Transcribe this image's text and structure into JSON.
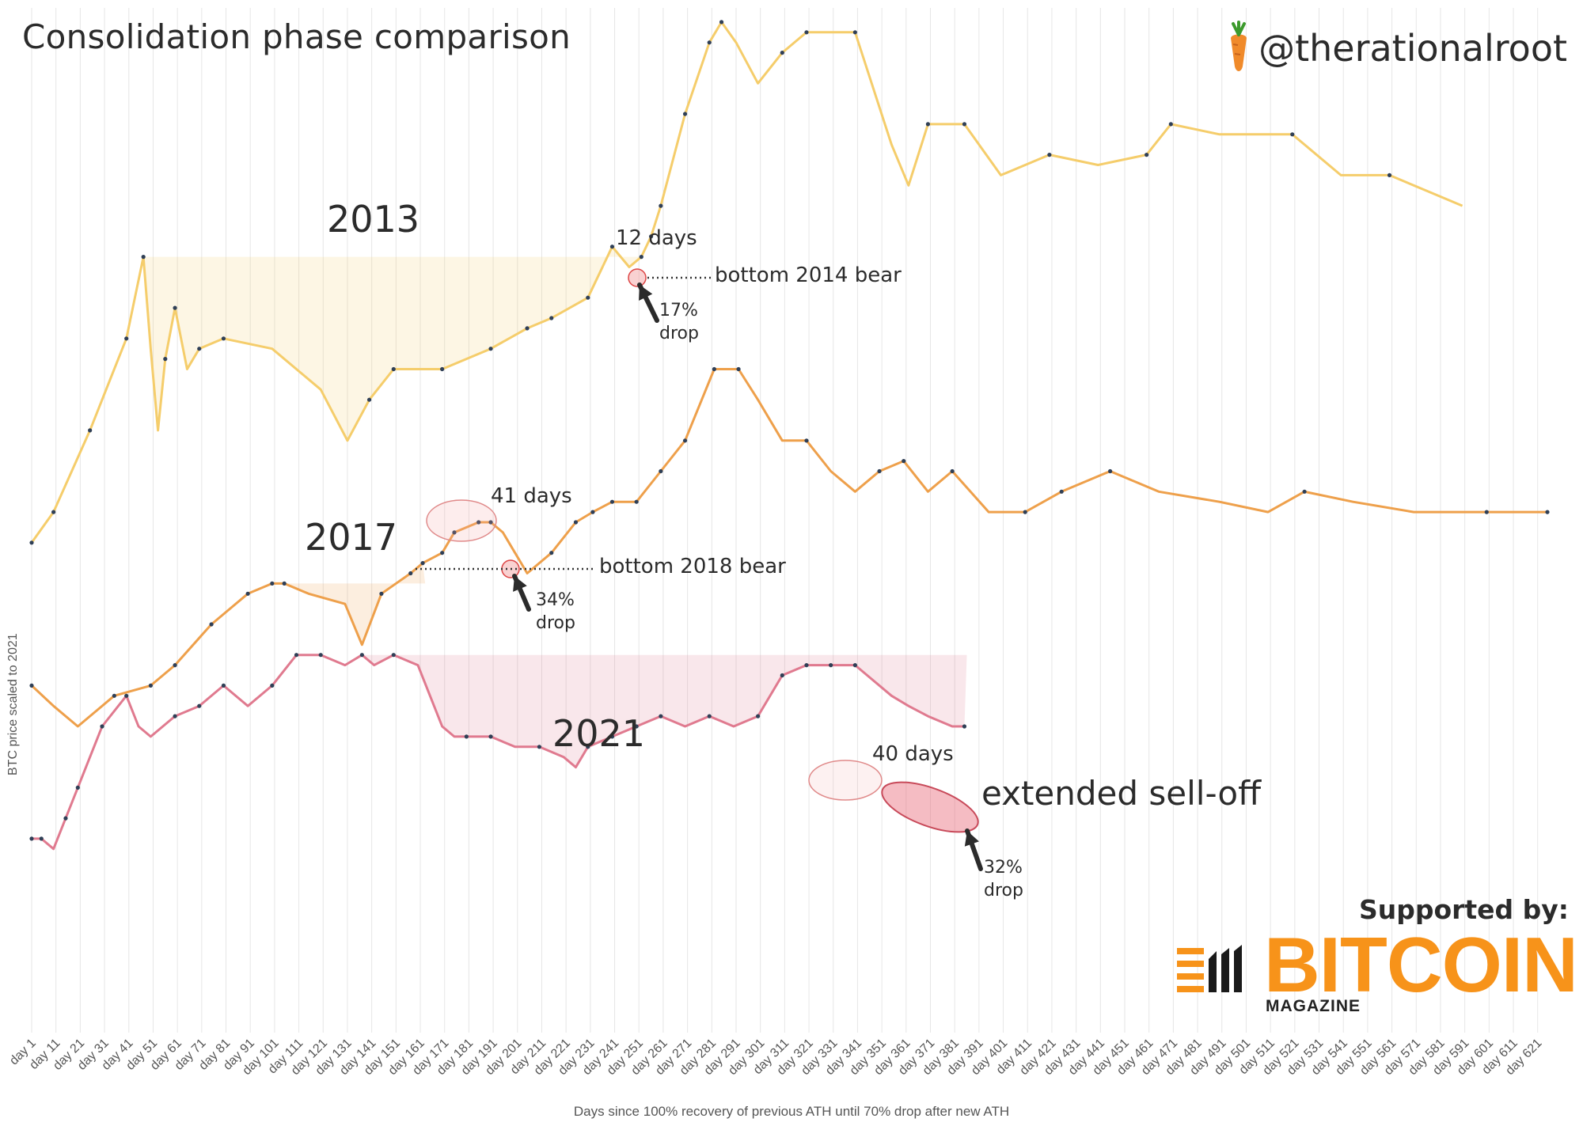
{
  "header": {
    "title": "Consolidation phase comparison",
    "handle": "@therationalroot"
  },
  "sponsor": {
    "supported_by": "Supported by:",
    "brand": "BITCOIN",
    "brand_sub": "MAGAZINE"
  },
  "axes": {
    "ylabel": "BTC price scaled to 2021",
    "xlabel": "Days since 100% recovery of previous ATH until 70% drop after new ATH"
  },
  "annotations": {
    "y2013": "2013",
    "y2017": "2017",
    "y2021": "2021",
    "days_2013": "12 days",
    "days_2017": "41 days",
    "days_2021": "40 days",
    "bottom_2014": "bottom 2014 bear",
    "bottom_2018": "bottom 2018 bear",
    "drop_2013_pct": "17%",
    "drop_2017_pct": "34%",
    "drop_2021_pct": "32%",
    "drop_word": "drop",
    "extended": "extended sell-off"
  },
  "colors": {
    "y2013": "#f5cd6b",
    "y2017": "#eea04b",
    "y2021": "#e07a8f",
    "marker": "#2f3f56",
    "grid": "#e6e6e6"
  },
  "chart_data": {
    "type": "line",
    "x_ticks": [
      "day 1",
      "day 11",
      "day 21",
      "day 31",
      "day 41",
      "day 51",
      "day 61",
      "day 71",
      "day 81",
      "day 91",
      "day 101",
      "day 111",
      "day 121",
      "day 131",
      "day 141",
      "day 151",
      "day 161",
      "day 171",
      "day 181",
      "day 191",
      "day 201",
      "day 211",
      "day 221",
      "day 231",
      "day 241",
      "day 251",
      "day 261",
      "day 271",
      "day 281",
      "day 291",
      "day 301",
      "day 311",
      "day 321",
      "day 331",
      "day 341",
      "day 351",
      "day 361",
      "day 371",
      "day 381",
      "day 391",
      "day 401",
      "day 411",
      "day 421",
      "day 431",
      "day 441",
      "day 451",
      "day 461",
      "day 471",
      "day 481",
      "day 491",
      "day 501",
      "day 511",
      "day 521",
      "day 531",
      "day 541",
      "day 551",
      "day 561",
      "day 571",
      "day 581",
      "day 591",
      "day 601",
      "day 611",
      "day 621"
    ],
    "xlim": [
      1,
      625
    ],
    "ylim": [
      0,
      100
    ],
    "series": [
      {
        "name": "2013",
        "x": [
          1,
          10,
          25,
          40,
          47,
          50,
          53,
          56,
          60,
          65,
          70,
          80,
          100,
          120,
          131,
          140,
          150,
          170,
          190,
          205,
          215,
          230,
          240,
          247,
          252,
          256,
          260,
          270,
          280,
          285,
          291,
          300,
          310,
          320,
          340,
          355,
          362,
          370,
          385,
          400,
          420,
          440,
          460,
          470,
          490,
          520,
          540,
          560,
          590
        ],
        "y": [
          48,
          51,
          59,
          68,
          76,
          67,
          59,
          66,
          71,
          65,
          67,
          68,
          67,
          63,
          58,
          62,
          65,
          65,
          67,
          69,
          70,
          72,
          77,
          75,
          76,
          78,
          81,
          90,
          97,
          99,
          97,
          93,
          96,
          98,
          98,
          87,
          83,
          89,
          89,
          84,
          86,
          85,
          86,
          89,
          88,
          88,
          84,
          84,
          81
        ]
      },
      {
        "name": "2017",
        "x": [
          1,
          10,
          20,
          35,
          50,
          60,
          75,
          90,
          100,
          105,
          115,
          130,
          137,
          145,
          157,
          162,
          170,
          175,
          185,
          190,
          195,
          200,
          205,
          215,
          225,
          232,
          240,
          250,
          260,
          270,
          282,
          292,
          300,
          310,
          320,
          330,
          340,
          350,
          360,
          370,
          380,
          395,
          410,
          425,
          445,
          465,
          490,
          510,
          525,
          545,
          570,
          600,
          625
        ],
        "y": [
          34,
          32,
          30,
          33,
          34,
          36,
          40,
          43,
          44,
          44,
          43,
          42,
          38,
          43,
          45,
          46,
          47,
          49,
          50,
          50,
          49,
          47,
          45,
          47,
          50,
          51,
          52,
          52,
          55,
          58,
          65,
          65,
          62,
          58,
          58,
          55,
          53,
          55,
          56,
          53,
          55,
          51,
          51,
          53,
          55,
          53,
          52,
          51,
          53,
          52,
          51,
          51,
          51
        ]
      },
      {
        "name": "2021",
        "x": [
          1,
          5,
          10,
          15,
          20,
          30,
          40,
          45,
          50,
          60,
          70,
          80,
          90,
          100,
          110,
          120,
          130,
          137,
          142,
          150,
          160,
          170,
          175,
          180,
          190,
          200,
          210,
          220,
          225,
          230,
          240,
          250,
          260,
          270,
          280,
          290,
          300,
          310,
          320,
          330,
          340,
          345,
          355,
          362,
          370,
          380,
          385
        ],
        "y": [
          19,
          19,
          18,
          21,
          24,
          30,
          33,
          30,
          29,
          31,
          32,
          34,
          32,
          34,
          37,
          37,
          36,
          37,
          36,
          37,
          36,
          30,
          29,
          29,
          29,
          28,
          28,
          27,
          26,
          28,
          29,
          30,
          31,
          30,
          31,
          30,
          31,
          35,
          36,
          36,
          36,
          35,
          33,
          32,
          31,
          30,
          30
        ]
      }
    ],
    "bands": [
      {
        "name": "2013",
        "from": 47,
        "to": 254,
        "level": 76
      },
      {
        "name": "2017",
        "from": 103,
        "to": 163,
        "level": 44
      },
      {
        "name": "2021",
        "from": 137,
        "to": 386,
        "level": 37
      }
    ],
    "grid": "vertical"
  }
}
